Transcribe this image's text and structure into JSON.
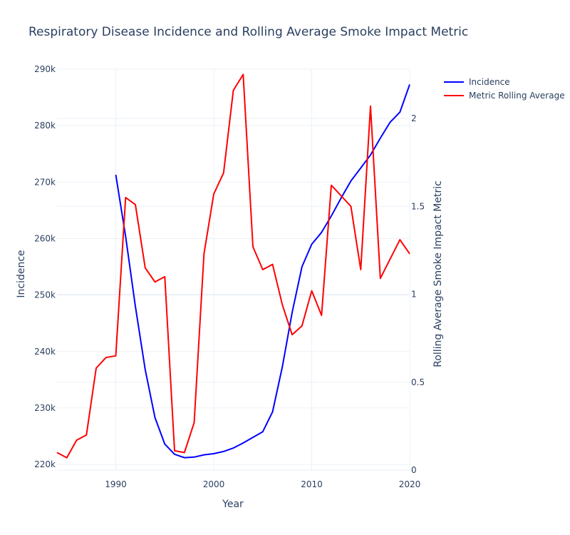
{
  "chart_data": {
    "type": "line",
    "title": "Respiratory Disease Incidence and Rolling Average Smoke Impact Metric",
    "xlabel": "Year",
    "ylabel": "Incidence",
    "y2label": "Rolling Average Smoke Impact Metric",
    "xlim": [
      1984,
      2020
    ],
    "ylim": [
      219000,
      290000
    ],
    "y2lim": [
      0,
      2.28
    ],
    "x_ticks": [
      1990,
      2000,
      2010,
      2020
    ],
    "x_tick_labels": [
      "1990",
      "2000",
      "2010",
      "2020"
    ],
    "y_ticks": [
      220000,
      230000,
      240000,
      250000,
      260000,
      270000,
      280000,
      290000
    ],
    "y_tick_labels": [
      "220k",
      "230k",
      "240k",
      "250k",
      "260k",
      "270k",
      "280k",
      "290k"
    ],
    "y2_ticks": [
      0,
      0.5,
      1,
      1.5,
      2
    ],
    "y2_tick_labels": [
      "0",
      "0.5",
      "1",
      "1.5",
      "2"
    ],
    "grid": true,
    "legend_position": "top-right",
    "series": [
      {
        "name": "Incidence",
        "axis": "y",
        "color": "#0000ff",
        "x": [
          1990,
          1991,
          1992,
          1993,
          1994,
          1995,
          1996,
          1997,
          1998,
          1999,
          2000,
          2001,
          2002,
          2003,
          2004,
          2005,
          2006,
          2007,
          2008,
          2009,
          2010,
          2011,
          2012,
          2013,
          2014,
          2015,
          2016,
          2017,
          2018,
          2019,
          2020
        ],
        "y": [
          271300,
          260400,
          248000,
          236800,
          228300,
          223600,
          221800,
          221200,
          221300,
          221700,
          221900,
          222300,
          222900,
          223800,
          224800,
          225800,
          229300,
          237300,
          246900,
          255000,
          259000,
          261100,
          264000,
          267200,
          270200,
          272500,
          274800,
          277800,
          280600,
          282400,
          287300
        ]
      },
      {
        "name": "Metric Rolling Average",
        "axis": "y2",
        "color": "#ff0000",
        "x": [
          1984,
          1985,
          1986,
          1987,
          1988,
          1989,
          1990,
          1991,
          1992,
          1993,
          1994,
          1995,
          1996,
          1997,
          1998,
          1999,
          2000,
          2001,
          2002,
          2003,
          2004,
          2005,
          2006,
          2007,
          2008,
          2009,
          2010,
          2011,
          2012,
          2013,
          2014,
          2015,
          2016,
          2017,
          2018,
          2019,
          2020
        ],
        "y": [
          0.1,
          0.07,
          0.17,
          0.2,
          0.58,
          0.64,
          0.65,
          1.55,
          1.51,
          1.15,
          1.07,
          1.1,
          0.11,
          0.1,
          0.27,
          1.23,
          1.57,
          1.69,
          2.16,
          2.25,
          1.27,
          1.14,
          1.17,
          0.94,
          0.77,
          0.82,
          1.02,
          0.88,
          1.62,
          1.56,
          1.5,
          1.14,
          2.07,
          1.09,
          1.2,
          1.31,
          1.23
        ]
      }
    ]
  }
}
